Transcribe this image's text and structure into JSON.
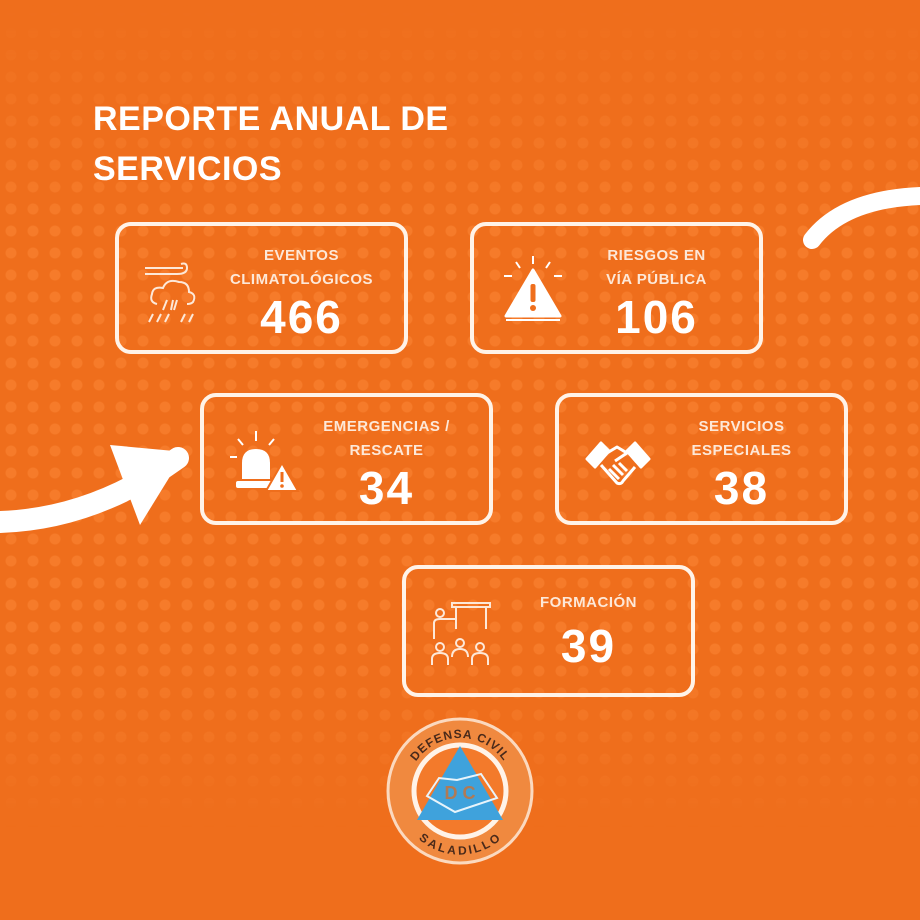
{
  "title": {
    "line1": "REPORTE ANUAL DE",
    "line2": "SERVICIOS"
  },
  "cards": [
    {
      "label1": "EVENTOS",
      "label2": "CLIMATOLÓGICOS",
      "value": "466",
      "icon": "storm-cloud-icon"
    },
    {
      "label1": "RIESGOS EN",
      "label2": "VÍA PÚBLICA",
      "value": "106",
      "icon": "warning-triangle-icon"
    },
    {
      "label1": "EMERGENCIAS /",
      "label2": "RESCATE",
      "value": "34",
      "icon": "siren-alert-icon"
    },
    {
      "label1": "SERVICIOS",
      "label2": "ESPECIALES",
      "value": "38",
      "icon": "handshake-icon"
    },
    {
      "label1": "FORMACIÓN",
      "value": "39",
      "icon": "training-class-icon"
    }
  ],
  "logo": {
    "top_text": "DEFENSA CIVIL",
    "bottom_text": "SALADILLO",
    "center": "D C"
  },
  "colors": {
    "background": "#ef6e1c",
    "card_border": "#fff3e8",
    "logo_blue": "#3fa2dc"
  }
}
